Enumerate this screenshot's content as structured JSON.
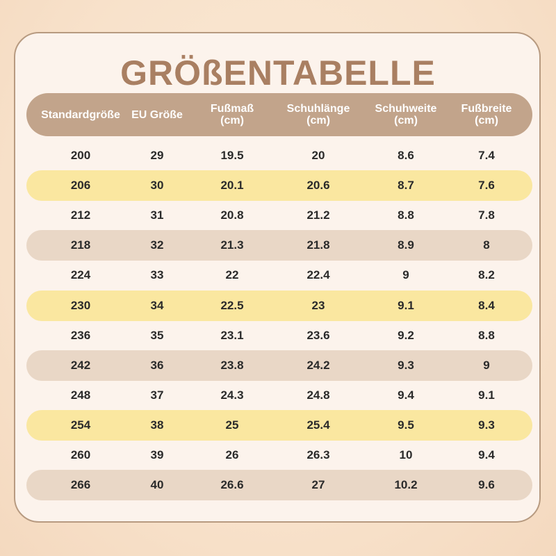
{
  "title": "GRÖßENTABELLE",
  "header": [
    {
      "line1": "Standardgröße",
      "line2": ""
    },
    {
      "line1": "EU Größe",
      "line2": ""
    },
    {
      "line1": "Fußmaß",
      "line2": "(cm)"
    },
    {
      "line1": "Schuhlänge",
      "line2": "(cm)"
    },
    {
      "line1": "Schuhweite",
      "line2": "(cm)"
    },
    {
      "line1": "Fußbreite",
      "line2": "(cm)"
    }
  ],
  "rows": [
    {
      "style": "plain",
      "cells": [
        "200",
        "29",
        "19.5",
        "20",
        "8.6",
        "7.4"
      ]
    },
    {
      "style": "yellow",
      "cells": [
        "206",
        "30",
        "20.1",
        "20.6",
        "8.7",
        "7.6"
      ]
    },
    {
      "style": "plain",
      "cells": [
        "212",
        "31",
        "20.8",
        "21.2",
        "8.8",
        "7.8"
      ]
    },
    {
      "style": "tan",
      "cells": [
        "218",
        "32",
        "21.3",
        "21.8",
        "8.9",
        "8"
      ]
    },
    {
      "style": "plain",
      "cells": [
        "224",
        "33",
        "22",
        "22.4",
        "9",
        "8.2"
      ]
    },
    {
      "style": "yellow",
      "cells": [
        "230",
        "34",
        "22.5",
        "23",
        "9.1",
        "8.4"
      ]
    },
    {
      "style": "plain",
      "cells": [
        "236",
        "35",
        "23.1",
        "23.6",
        "9.2",
        "8.8"
      ]
    },
    {
      "style": "tan",
      "cells": [
        "242",
        "36",
        "23.8",
        "24.2",
        "9.3",
        "9"
      ]
    },
    {
      "style": "plain",
      "cells": [
        "248",
        "37",
        "24.3",
        "24.8",
        "9.4",
        "9.1"
      ]
    },
    {
      "style": "yellow",
      "cells": [
        "254",
        "38",
        "25",
        "25.4",
        "9.5",
        "9.3"
      ]
    },
    {
      "style": "plain",
      "cells": [
        "260",
        "39",
        "26",
        "26.3",
        "10",
        "9.4"
      ]
    },
    {
      "style": "tan",
      "cells": [
        "266",
        "40",
        "26.6",
        "27",
        "10.2",
        "9.6"
      ]
    }
  ]
}
